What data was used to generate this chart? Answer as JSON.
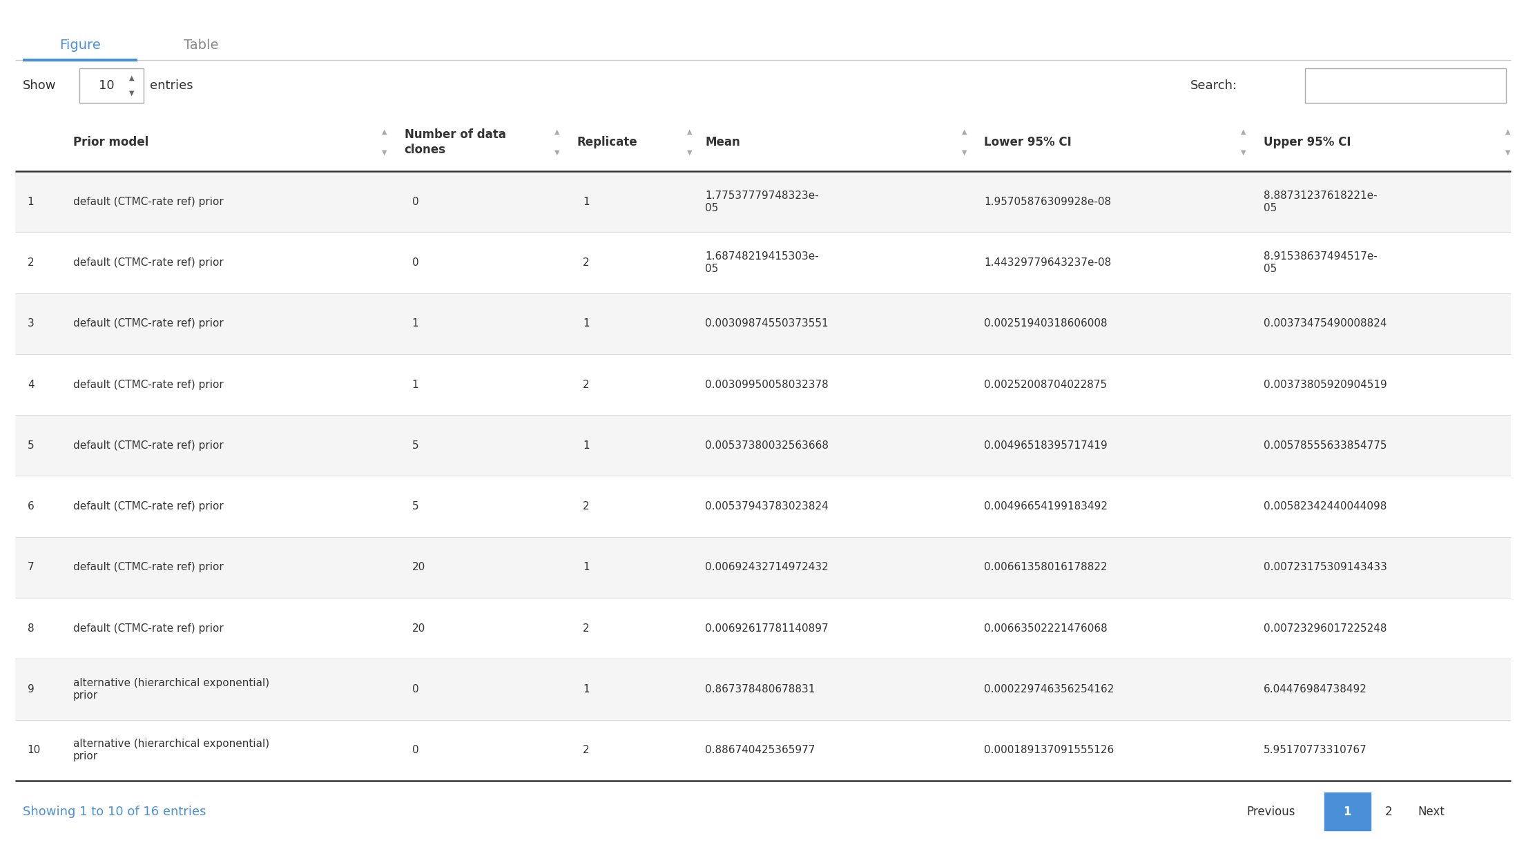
{
  "tab_figure": "Figure",
  "tab_table": "Table",
  "show_label": "Show",
  "show_value": "10",
  "show_suffix": "entries",
  "search_label": "Search:",
  "columns": [
    "",
    "Prior model",
    "Number of data\nclones",
    "Replicate",
    "Mean",
    "Lower 95% CI",
    "Upper 95% CI"
  ],
  "rows": [
    [
      "1",
      "default (CTMC-rate ref) prior",
      "0",
      "1",
      "1.77537779748323e-\n05",
      "1.95705876309928e-08",
      "8.88731237618221e-\n05"
    ],
    [
      "2",
      "default (CTMC-rate ref) prior",
      "0",
      "2",
      "1.68748219415303e-\n05",
      "1.44329779643237e-08",
      "8.91538637494517e-\n05"
    ],
    [
      "3",
      "default (CTMC-rate ref) prior",
      "1",
      "1",
      "0.00309874550373551",
      "0.00251940318606008",
      "0.00373475490008824"
    ],
    [
      "4",
      "default (CTMC-rate ref) prior",
      "1",
      "2",
      "0.00309950058032378",
      "0.00252008704022875",
      "0.00373805920904519"
    ],
    [
      "5",
      "default (CTMC-rate ref) prior",
      "5",
      "1",
      "0.00537380032563668",
      "0.00496518395717419",
      "0.00578555633854775"
    ],
    [
      "6",
      "default (CTMC-rate ref) prior",
      "5",
      "2",
      "0.00537943783023824",
      "0.00496654199183492",
      "0.00582342440044098"
    ],
    [
      "7",
      "default (CTMC-rate ref) prior",
      "20",
      "1",
      "0.00692432714972432",
      "0.00661358016178822",
      "0.00723175309143433"
    ],
    [
      "8",
      "default (CTMC-rate ref) prior",
      "20",
      "2",
      "0.00692617781140897",
      "0.00663502221476068",
      "0.00723296017225248"
    ],
    [
      "9",
      "alternative (hierarchical exponential)\nprior",
      "0",
      "1",
      "0.867378480678831",
      "0.000229746356254162",
      "6.04476984738492"
    ],
    [
      "10",
      "alternative (hierarchical exponential)\nprior",
      "0",
      "2",
      "0.886740425365977",
      "0.000189137091555126",
      "5.95170773310767"
    ]
  ],
  "footer": "Showing 1 to 10 of 16 entries",
  "pagination": [
    "Previous",
    "1",
    "2",
    "Next"
  ],
  "bg_color_odd": "#f5f5f5",
  "bg_color_even": "#ffffff",
  "header_text_color": "#333333",
  "thick_border_color": "#333333",
  "tab_active_color": "#4a90d9",
  "tab_inactive_color": "#888888",
  "footer_text_color": "#4a90d9",
  "cell_text_color": "#333333",
  "fig_width": 22.1,
  "fig_height": 12.4
}
